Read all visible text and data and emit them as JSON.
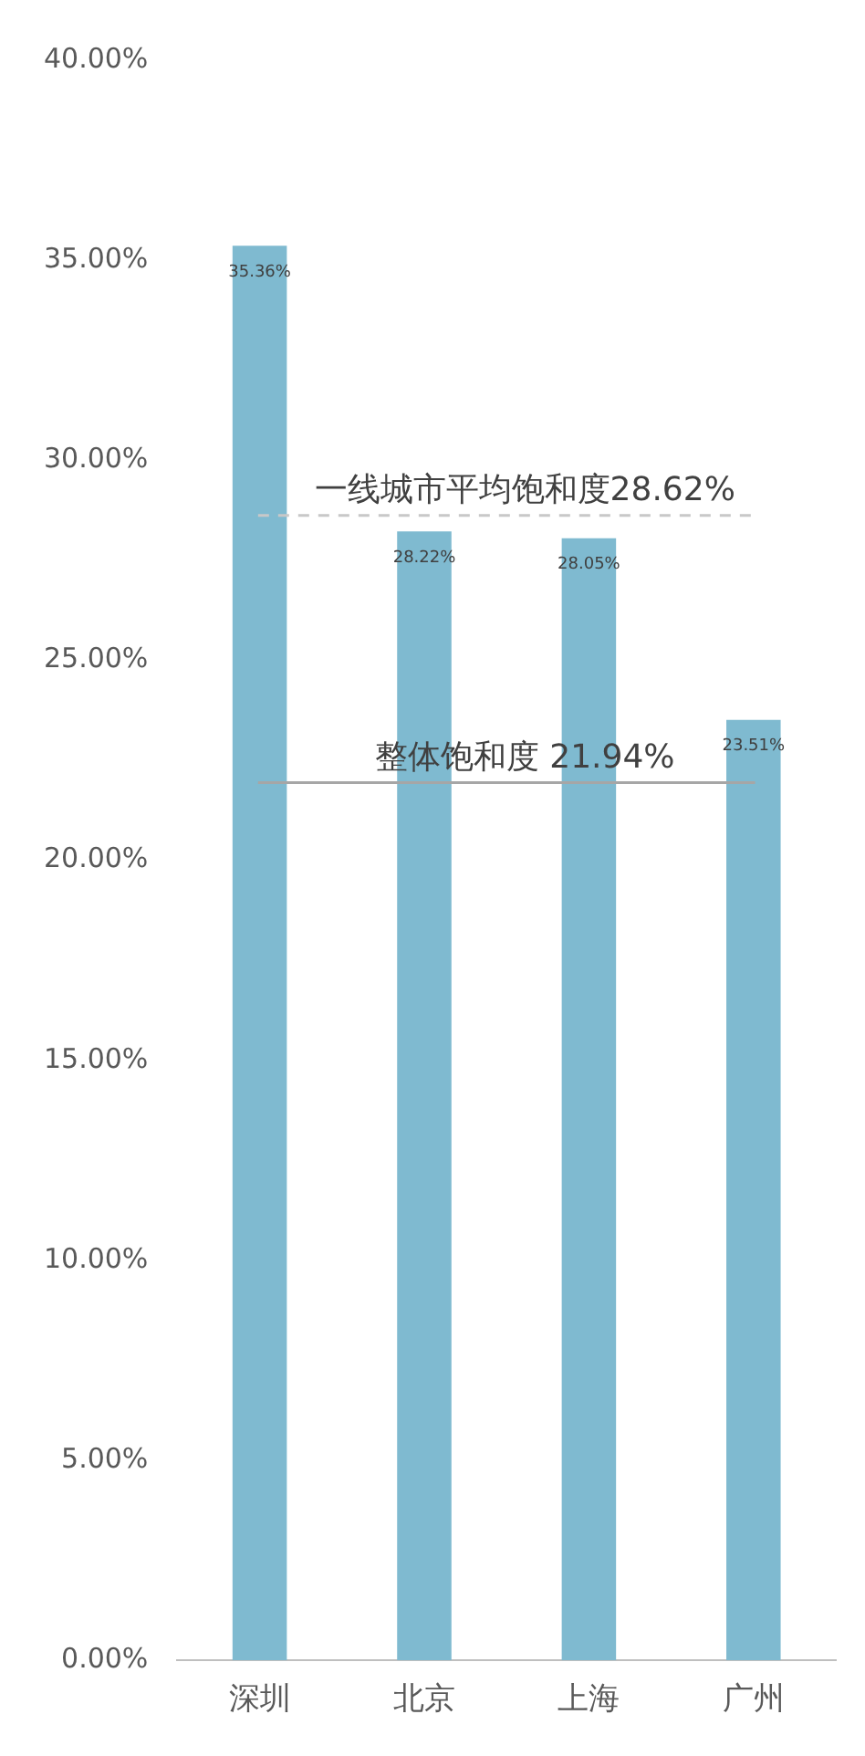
{
  "chart_data": {
    "type": "bar",
    "categories": [
      "深圳",
      "北京",
      "上海",
      "广州"
    ],
    "values": [
      35.36,
      28.22,
      28.05,
      23.51
    ],
    "value_labels": [
      "35.36%",
      "28.22%",
      "28.05%",
      "23.51%"
    ],
    "color": "#7fbad0",
    "ylim": [
      0,
      40
    ],
    "yticks": [
      {
        "value": 0,
        "label": "0.00%"
      },
      {
        "value": 5,
        "label": "5.00%"
      },
      {
        "value": 10,
        "label": "10.00%"
      },
      {
        "value": 15,
        "label": "15.00%"
      },
      {
        "value": 20,
        "label": "20.00%"
      },
      {
        "value": 25,
        "label": "25.00%"
      },
      {
        "value": 30,
        "label": "30.00%"
      },
      {
        "value": 35,
        "label": "35.00%"
      },
      {
        "value": 40,
        "label": "40.00%"
      }
    ],
    "ref_lines": [
      {
        "axis": "y",
        "value": 28.62,
        "label": "一线城市平均饱和度28.62%",
        "color": "#c8c8c8",
        "line_style": "dashed"
      },
      {
        "axis": "y",
        "value": 21.94,
        "label": "整体饱和度 21.94%",
        "color": "#a6a6a6",
        "line_style": "solid"
      }
    ],
    "grid": false,
    "legend": false
  }
}
